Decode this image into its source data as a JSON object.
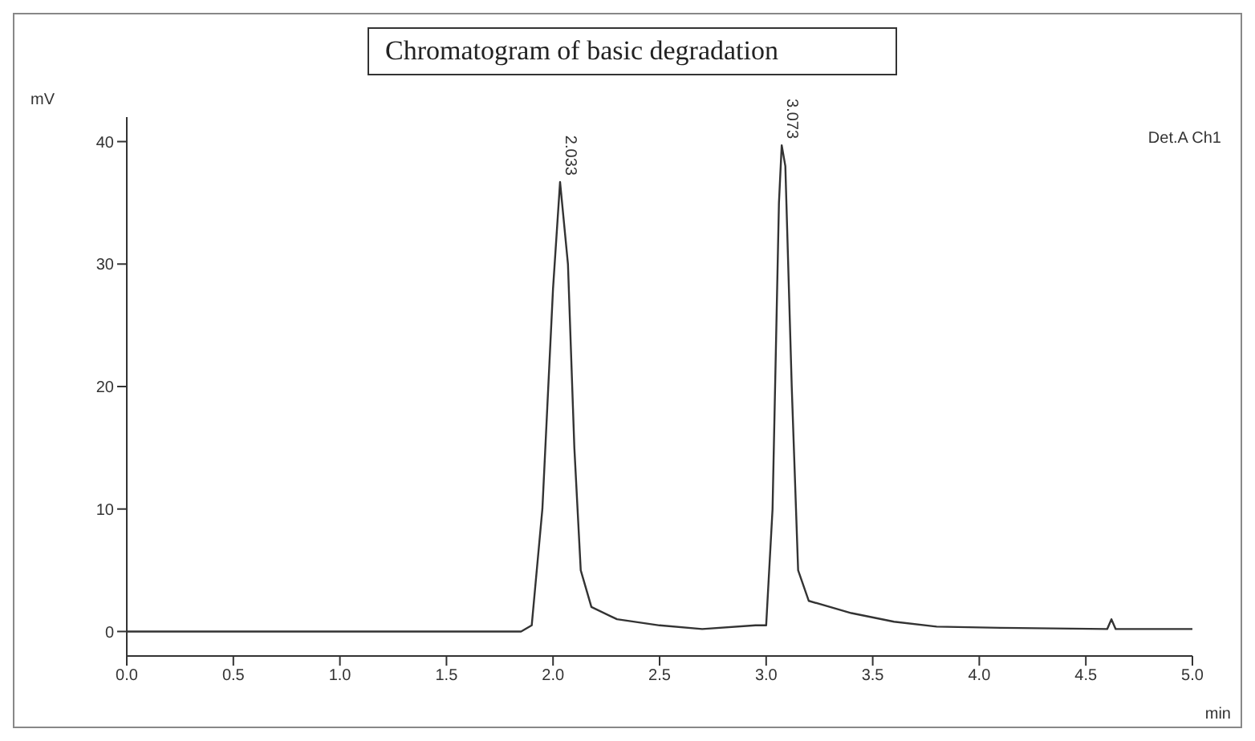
{
  "chart_data": {
    "type": "line",
    "title": "Chromatogram of basic degradation",
    "xlabel": "min",
    "ylabel": "mV",
    "x": [
      0,
      0.5,
      1.0,
      1.5,
      1.85,
      1.9,
      1.95,
      2.0,
      2.033,
      2.07,
      2.1,
      2.13,
      2.18,
      2.3,
      2.5,
      2.7,
      2.95,
      3.0,
      3.03,
      3.06,
      3.073,
      3.09,
      3.12,
      3.15,
      3.2,
      3.4,
      3.6,
      3.8,
      4.1,
      4.6,
      4.62,
      4.64,
      5.0
    ],
    "series": [
      {
        "color": "#333333",
        "values": [
          0,
          0,
          0,
          0,
          0,
          0.5,
          10,
          28,
          36.7,
          30,
          15,
          5,
          2,
          1,
          0.5,
          0.2,
          0.5,
          0.5,
          10,
          35,
          39.7,
          38,
          20,
          5,
          2.5,
          1.5,
          0.8,
          0.4,
          0.3,
          0.2,
          1,
          0.2,
          0.2
        ]
      }
    ],
    "xlim": [
      0,
      5
    ],
    "ylim": [
      -2,
      42
    ],
    "xticks": [
      {
        "value": 0,
        "label": "0.0"
      },
      0.5,
      {
        "value": 1,
        "label": "1.0"
      },
      1.5,
      {
        "value": 2,
        "label": "2.0"
      },
      2.5,
      {
        "value": 3,
        "label": "3.0"
      },
      3.5,
      {
        "value": 4,
        "label": "4.0"
      },
      4.5,
      {
        "value": 5,
        "label": "5.0"
      }
    ],
    "yticks": [
      0,
      10,
      20,
      30,
      40
    ],
    "grid": false,
    "legend": false,
    "marker": "none",
    "line_style": "solid",
    "annotations": [
      {
        "text": "2.033",
        "x": 2.033,
        "y": 36.7
      },
      {
        "text": "3.073",
        "x": 3.073,
        "y": 39.7
      },
      "Det.A Ch1"
    ]
  }
}
